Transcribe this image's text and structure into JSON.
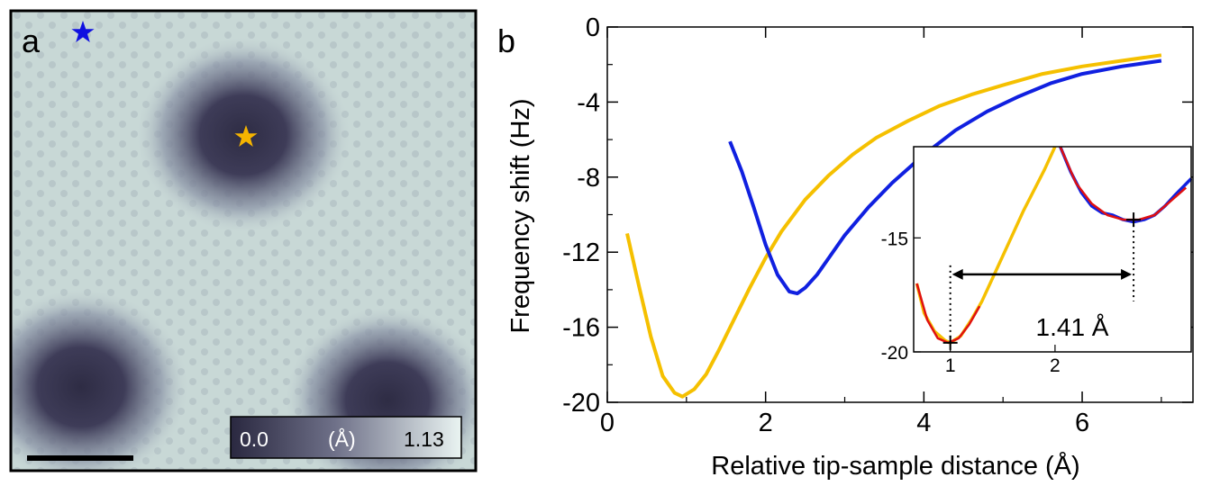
{
  "panel_a": {
    "label": "a",
    "colorbar": {
      "min_label": "0.0",
      "unit_label": "(Å)",
      "max_label": "1.13"
    },
    "markers": [
      {
        "name": "blue-star",
        "color": "#1010e0"
      },
      {
        "name": "orange-star",
        "color": "#f5b400"
      }
    ],
    "colors": {
      "dark": "#3a3850",
      "light": "#e4f0ee"
    }
  },
  "panel_b": {
    "label": "b",
    "inset_annotation": "1.41 Å"
  },
  "chart_data": [
    {
      "type": "line",
      "title": "",
      "xlabel": "Relative tip-sample distance (Å)",
      "ylabel": "Frequency shift (Hz)",
      "xlim": [
        0,
        7.4
      ],
      "ylim": [
        -20,
        0
      ],
      "xticks": [
        0,
        2,
        4,
        6
      ],
      "yticks": [
        0,
        -4,
        -8,
        -12,
        -16,
        -20
      ],
      "grid": false,
      "series": [
        {
          "color": "#f5c000",
          "x": [
            0.25,
            0.4,
            0.55,
            0.7,
            0.85,
            0.95,
            1.1,
            1.25,
            1.4,
            1.6,
            1.8,
            2.0,
            2.2,
            2.5,
            2.8,
            3.1,
            3.4,
            3.8,
            4.2,
            4.6,
            5.0,
            5.5,
            6.0,
            6.5,
            7.0
          ],
          "y": [
            -11.0,
            -13.8,
            -16.5,
            -18.6,
            -19.5,
            -19.7,
            -19.3,
            -18.5,
            -17.3,
            -15.6,
            -13.9,
            -12.3,
            -10.9,
            -9.2,
            -7.9,
            -6.8,
            -5.9,
            -5.0,
            -4.2,
            -3.6,
            -3.1,
            -2.5,
            -2.1,
            -1.8,
            -1.5
          ]
        },
        {
          "color": "#1020e0",
          "x": [
            1.55,
            1.7,
            1.85,
            2.0,
            2.15,
            2.3,
            2.4,
            2.5,
            2.65,
            2.8,
            3.0,
            3.3,
            3.6,
            4.0,
            4.4,
            4.8,
            5.2,
            5.6,
            6.0,
            6.5,
            7.0
          ],
          "y": [
            -6.1,
            -7.7,
            -9.6,
            -11.6,
            -13.2,
            -14.1,
            -14.2,
            -13.9,
            -13.2,
            -12.3,
            -11.1,
            -9.6,
            -8.3,
            -6.8,
            -5.5,
            -4.5,
            -3.7,
            -3.0,
            -2.5,
            -2.1,
            -1.8
          ]
        }
      ]
    },
    {
      "type": "line",
      "title": "",
      "xlabel": "",
      "ylabel": "",
      "xlim": [
        0.65,
        3.3
      ],
      "ylim": [
        -20,
        -11
      ],
      "xticks": [
        1,
        2
      ],
      "yticks": [
        -15,
        -20
      ],
      "grid": false,
      "series": [
        {
          "color": "#f5c000",
          "x": [
            0.68,
            0.75,
            0.85,
            0.95,
            1.0,
            1.1,
            1.2,
            1.3,
            1.4,
            1.5,
            1.6,
            1.7,
            1.8,
            1.9,
            2.0
          ],
          "y": [
            -17.0,
            -18.3,
            -19.1,
            -19.5,
            -19.6,
            -19.3,
            -18.6,
            -17.8,
            -16.8,
            -15.8,
            -14.8,
            -13.8,
            -12.9,
            -12.0,
            -11.0
          ]
        },
        {
          "color": "#1020e0",
          "x": [
            2.05,
            2.15,
            2.25,
            2.35,
            2.45,
            2.55,
            2.65,
            2.75,
            2.85,
            2.95,
            3.05,
            3.15,
            3.3
          ],
          "y": [
            -11.0,
            -12.1,
            -13.0,
            -13.6,
            -13.9,
            -14.0,
            -14.2,
            -14.3,
            -14.2,
            -14.0,
            -13.6,
            -13.1,
            -12.4
          ]
        },
        {
          "color": "#e01010",
          "x": [
            0.68,
            0.78,
            0.88,
            0.98,
            1.08,
            1.18,
            1.28
          ],
          "y": [
            -17.0,
            -18.6,
            -19.4,
            -19.6,
            -19.4,
            -18.8,
            -18.0
          ]
        },
        {
          "color": "#e01010",
          "x": [
            2.05,
            2.2,
            2.35,
            2.5,
            2.65,
            2.8,
            2.95,
            3.1,
            3.25
          ],
          "y": [
            -11.0,
            -12.6,
            -13.5,
            -14.0,
            -14.2,
            -14.2,
            -14.0,
            -13.4,
            -12.8
          ]
        }
      ]
    }
  ]
}
